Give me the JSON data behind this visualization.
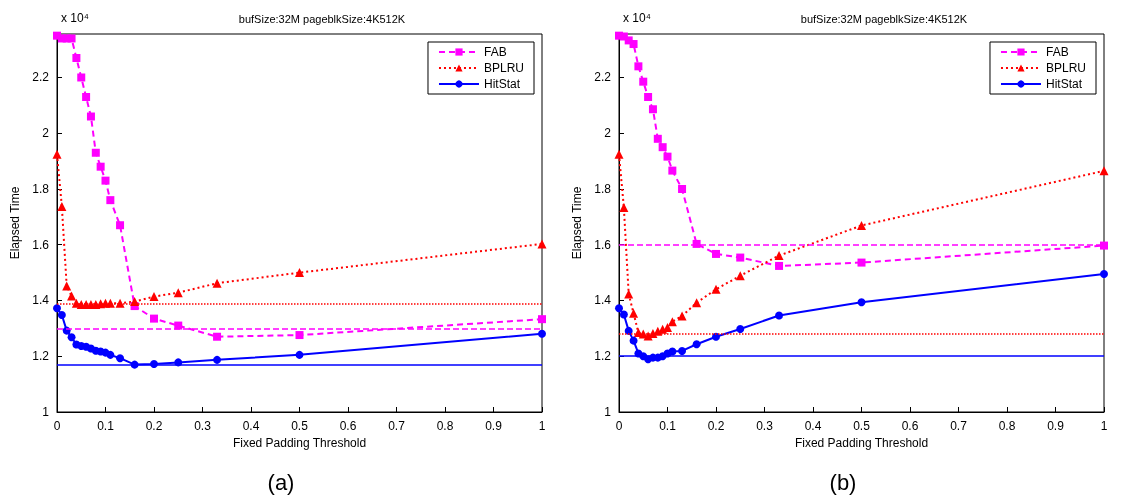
{
  "chart_data": [
    {
      "type": "line",
      "title": "bufSize:32M pageblkSize:4K512K",
      "xlabel": "Fixed Padding Threshold",
      "ylabel": "Elapsed Time",
      "annotations": [
        "x 10⁴",
        "(a)"
      ],
      "x": [
        0,
        0.01,
        0.02,
        0.03,
        0.04,
        0.05,
        0.06,
        0.07,
        0.08,
        0.09,
        0.1,
        0.11,
        0.13,
        0.16,
        0.2,
        0.25,
        0.33,
        0.5,
        1
      ],
      "series": [
        {
          "name": "FAB",
          "color": "#ff00ff",
          "marker": "square",
          "line_style": "dashed",
          "values": [
            2.35,
            2.34,
            2.34,
            2.34,
            2.27,
            2.2,
            2.13,
            2.06,
            1.93,
            1.88,
            1.83,
            1.76,
            1.67,
            1.38,
            1.335,
            1.31,
            1.27,
            1.276,
            1.333
          ]
        },
        {
          "name": "BPLRU",
          "color": "#ff0000",
          "marker": "triangle",
          "line_style": "dotted",
          "values": [
            1.925,
            1.737,
            1.452,
            1.416,
            1.39,
            1.386,
            1.386,
            1.386,
            1.386,
            1.388,
            1.39,
            1.39,
            1.39,
            1.396,
            1.414,
            1.428,
            1.462,
            1.5,
            1.603
          ]
        },
        {
          "name": "HitStat",
          "color": "#0000ff",
          "marker": "circle",
          "line_style": "solid",
          "values": [
            1.372,
            1.348,
            1.292,
            1.268,
            1.242,
            1.237,
            1.234,
            1.228,
            1.22,
            1.217,
            1.213,
            1.205,
            1.193,
            1.17,
            1.172,
            1.178,
            1.187,
            1.205,
            1.281
          ]
        }
      ],
      "ref_lines": [
        {
          "axis": "y",
          "value": 1.3,
          "color": "#ff00ff",
          "line_style": "dashed"
        },
        {
          "axis": "y",
          "value": 1.386,
          "color": "#ff0000",
          "line_style": "dotted"
        },
        {
          "axis": "y",
          "value": 1.169,
          "color": "#0000ff",
          "line_style": "solid"
        }
      ],
      "xlim": [
        0,
        1
      ],
      "xticks": [
        0,
        0.1,
        0.2,
        0.3,
        0.4,
        0.5,
        0.6,
        0.7,
        0.8,
        0.9,
        1
      ],
      "ylim": [
        1,
        2.356
      ],
      "yticks": [
        1,
        1.2,
        1.4,
        1.6,
        1.8,
        2,
        2.2
      ],
      "legend": "top right",
      "grid": false
    },
    {
      "type": "line",
      "title": "bufSize:32M pageblkSize:4K512K",
      "xlabel": "Fixed Padding Threshold",
      "ylabel": "Elapsed Time",
      "annotations": [
        "x 10⁴",
        "(b)"
      ],
      "x": [
        0,
        0.01,
        0.02,
        0.03,
        0.04,
        0.05,
        0.06,
        0.07,
        0.08,
        0.09,
        0.1,
        0.11,
        0.13,
        0.16,
        0.2,
        0.25,
        0.33,
        0.5,
        1
      ],
      "series": [
        {
          "name": "FAB",
          "color": "#ff00ff",
          "marker": "square",
          "line_style": "dashed",
          "values": [
            2.35,
            2.347,
            2.333,
            2.32,
            2.24,
            2.185,
            2.13,
            2.086,
            1.98,
            1.95,
            1.916,
            1.866,
            1.8,
            1.603,
            1.567,
            1.554,
            1.524,
            1.536,
            1.597
          ]
        },
        {
          "name": "BPLRU",
          "color": "#ff0000",
          "marker": "triangle",
          "line_style": "dotted",
          "values": [
            1.925,
            1.734,
            1.423,
            1.354,
            1.285,
            1.28,
            1.273,
            1.282,
            1.29,
            1.297,
            1.303,
            1.324,
            1.344,
            1.392,
            1.44,
            1.489,
            1.561,
            1.669,
            1.865
          ]
        },
        {
          "name": "HitStat",
          "color": "#0000ff",
          "marker": "circle",
          "line_style": "solid",
          "values": [
            1.372,
            1.35,
            1.291,
            1.256,
            1.21,
            1.2,
            1.189,
            1.195,
            1.195,
            1.2,
            1.21,
            1.217,
            1.219,
            1.243,
            1.27,
            1.298,
            1.346,
            1.394,
            1.495
          ]
        }
      ],
      "ref_lines": [
        {
          "axis": "y",
          "value": 1.596,
          "color": "#ff00ff",
          "line_style": "dashed"
        },
        {
          "axis": "y",
          "value": 1.279,
          "color": "#ff0000",
          "line_style": "dotted"
        },
        {
          "axis": "y",
          "value": 1.2,
          "color": "#0000ff",
          "line_style": "solid"
        }
      ],
      "xlim": [
        0,
        1
      ],
      "xticks": [
        0,
        0.1,
        0.2,
        0.3,
        0.4,
        0.5,
        0.6,
        0.7,
        0.8,
        0.9,
        1
      ],
      "ylim": [
        1,
        2.356
      ],
      "yticks": [
        1,
        1.2,
        1.4,
        1.6,
        1.8,
        2,
        2.2
      ],
      "legend": "top right",
      "grid": false
    }
  ]
}
